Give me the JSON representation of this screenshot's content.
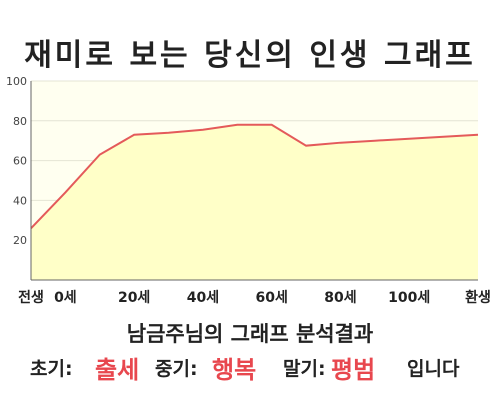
{
  "title": "재미로 보는 당신의 인생 그래프",
  "result": {
    "heading": "남금주님의 그래프 분석결과",
    "early_label": "초기:",
    "early_value": "출세",
    "middle_label": "중기:",
    "middle_value": "행복",
    "late_label": "말기:",
    "late_value": "평범",
    "ending": "입니다"
  },
  "colors": {
    "line": "#e45a5a",
    "fill": "#ffffc8",
    "plot_bg": "#fffff0",
    "grid": "#e4e4d4",
    "axis": "#666666",
    "highlight": "#e8474e"
  },
  "chart_data": {
    "type": "area",
    "title": "",
    "xlabel": "",
    "ylabel": "",
    "x": [
      -10,
      0,
      10,
      20,
      30,
      40,
      50,
      60,
      70,
      80,
      90,
      100,
      110,
      120
    ],
    "values": [
      26,
      44,
      63,
      73,
      74,
      75.5,
      78,
      78,
      67.5,
      69,
      70,
      71,
      72,
      73
    ],
    "series": [
      {
        "name": "",
        "values": [
          26,
          44,
          63,
          73,
          74,
          75.5,
          78,
          78,
          67.5,
          69,
          70,
          71,
          72,
          73
        ]
      }
    ],
    "xlim": [
      -10,
      120
    ],
    "ylim": [
      0,
      100
    ],
    "x_ticks": [
      {
        "x": -10,
        "label": "전생"
      },
      {
        "x": 0,
        "label": "0세"
      },
      {
        "x": 20,
        "label": "20세"
      },
      {
        "x": 40,
        "label": "40세"
      },
      {
        "x": 60,
        "label": "60세"
      },
      {
        "x": 80,
        "label": "80세"
      },
      {
        "x": 100,
        "label": "100세"
      },
      {
        "x": 120,
        "label": "환생"
      }
    ],
    "y_ticks": [
      {
        "y": 20,
        "label": "20"
      },
      {
        "y": 40,
        "label": "40"
      },
      {
        "y": 60,
        "label": "60"
      },
      {
        "y": 80,
        "label": "80"
      },
      {
        "y": 100,
        "label": "100"
      }
    ],
    "grid": true,
    "legend": "none"
  }
}
